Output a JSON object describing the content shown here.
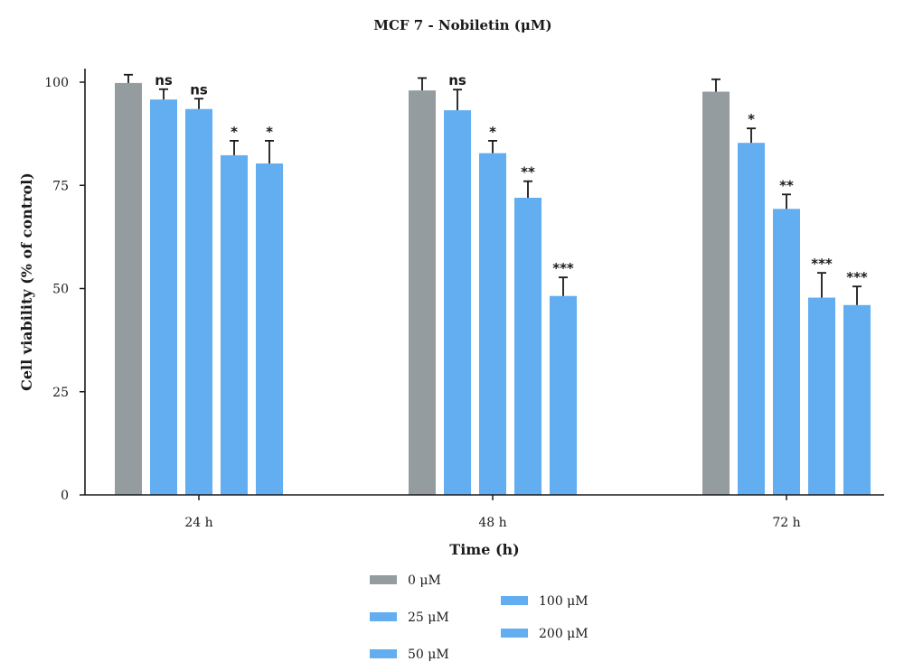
{
  "chart_data": {
    "type": "bar",
    "title": "MCF 7 - Nobiletin (μM)",
    "xlabel": "Time (h)",
    "ylabel": "Cell viability (% of control)",
    "ylim": [
      0,
      100
    ],
    "yticks": [
      0,
      25,
      50,
      75,
      100
    ],
    "categories": [
      "24 h",
      "48 h",
      "72 h"
    ],
    "grid": false,
    "legend_position": "bottom",
    "series": [
      {
        "name": "0 μM",
        "color": "#949ca0",
        "values": [
          99.8,
          98.0,
          97.7
        ],
        "errors": [
          2.0,
          3.0,
          3.0
        ],
        "annotations": [
          "",
          "",
          ""
        ]
      },
      {
        "name": "25 μM",
        "color": "#62aef0",
        "values": [
          95.8,
          93.2,
          85.3
        ],
        "errors": [
          2.5,
          5.0,
          3.5
        ],
        "annotations": [
          "ns",
          "ns",
          "*"
        ]
      },
      {
        "name": "50 μM",
        "color": "#62aef0",
        "values": [
          93.5,
          82.8,
          69.3
        ],
        "errors": [
          2.5,
          3.0,
          3.5
        ],
        "annotations": [
          "ns",
          "*",
          "**"
        ]
      },
      {
        "name": "100 μM",
        "color": "#62aef0",
        "values": [
          82.3,
          72.0,
          47.8
        ],
        "errors": [
          3.5,
          4.0,
          6.0
        ],
        "annotations": [
          "*",
          "**",
          "***"
        ]
      },
      {
        "name": "200 μM",
        "color": "#62aef0",
        "values": [
          80.3,
          48.2,
          46.0
        ],
        "errors": [
          5.5,
          4.5,
          4.5
        ],
        "annotations": [
          "*",
          "***",
          "***"
        ]
      }
    ]
  }
}
